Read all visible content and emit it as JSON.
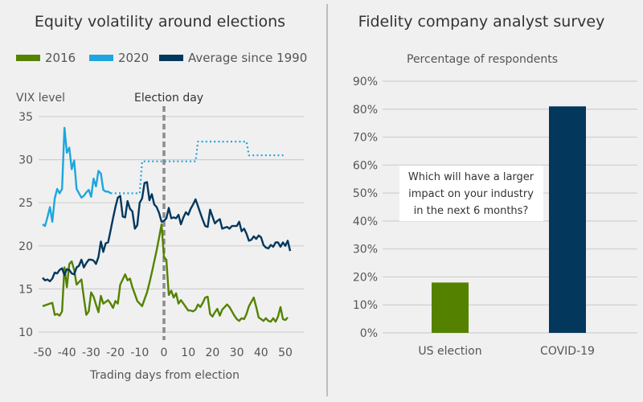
{
  "colors": {
    "s2016": "#548200",
    "s2020": "#1ea6de",
    "avg": "#03375c",
    "election_line": "#8c8c8c",
    "background": "#f0f0f0",
    "divider": "#bdbdbd"
  },
  "chart_data": [
    {
      "type": "line",
      "title": "Equity volatility around elections",
      "xlabel": "Trading days from election",
      "ylabel": "VIX level",
      "xlim": [
        -50,
        52
      ],
      "ylim": [
        10,
        35
      ],
      "xticks": [
        -50,
        -40,
        -30,
        -20,
        -10,
        0,
        10,
        20,
        30,
        40,
        50
      ],
      "yticks": [
        10,
        15,
        20,
        25,
        30,
        35
      ],
      "grid": true,
      "legend_position": "top",
      "annotation": "Election day",
      "annotation_x": 0,
      "series": [
        {
          "name": "2016",
          "key": "s2016",
          "style": "solid",
          "points": [
            [
              -50,
              13.0
            ],
            [
              -49,
              13.1
            ],
            [
              -48,
              13.2
            ],
            [
              -47,
              13.3
            ],
            [
              -46,
              13.4
            ],
            [
              -45,
              12.0
            ],
            [
              -44,
              12.1
            ],
            [
              -43,
              11.9
            ],
            [
              -42,
              12.4
            ],
            [
              -41,
              17.5
            ],
            [
              -40,
              15.2
            ],
            [
              -39,
              17.9
            ],
            [
              -38,
              18.2
            ],
            [
              -37,
              17.2
            ],
            [
              -36,
              15.5
            ],
            [
              -35,
              15.8
            ],
            [
              -34,
              16.1
            ],
            [
              -33,
              14.0
            ],
            [
              -32,
              12.0
            ],
            [
              -31,
              12.4
            ],
            [
              -30,
              14.6
            ],
            [
              -29,
              14.1
            ],
            [
              -28,
              13.2
            ],
            [
              -27,
              12.3
            ],
            [
              -26,
              14.2
            ],
            [
              -25,
              13.3
            ],
            [
              -24,
              13.5
            ],
            [
              -23,
              13.7
            ],
            [
              -22,
              13.3
            ],
            [
              -21,
              12.8
            ],
            [
              -20,
              13.6
            ],
            [
              -19,
              13.3
            ],
            [
              -18,
              15.5
            ],
            [
              -17,
              16.1
            ],
            [
              -16,
              16.7
            ],
            [
              -15,
              16.0
            ],
            [
              -14,
              16.2
            ],
            [
              -13,
              15.2
            ],
            [
              -12,
              14.4
            ],
            [
              -11,
              13.6
            ],
            [
              -10,
              13.3
            ],
            [
              -9,
              13.0
            ],
            [
              -8,
              13.8
            ],
            [
              -7,
              14.6
            ],
            [
              -6,
              15.7
            ],
            [
              -5,
              16.9
            ],
            [
              -4,
              18.2
            ],
            [
              -3,
              19.5
            ],
            [
              -2,
              21.0
            ],
            [
              -1,
              22.5
            ],
            [
              0,
              18.7
            ],
            [
              1,
              18.4
            ],
            [
              2,
              14.3
            ],
            [
              3,
              14.8
            ],
            [
              4,
              14.0
            ],
            [
              5,
              14.5
            ],
            [
              6,
              13.3
            ],
            [
              7,
              13.7
            ],
            [
              8,
              13.3
            ],
            [
              9,
              12.9
            ],
            [
              10,
              12.5
            ],
            [
              11,
              12.5
            ],
            [
              12,
              12.4
            ],
            [
              13,
              12.6
            ],
            [
              14,
              13.2
            ],
            [
              15,
              12.9
            ],
            [
              16,
              13.4
            ],
            [
              17,
              14.0
            ],
            [
              18,
              14.1
            ],
            [
              19,
              12.1
            ],
            [
              20,
              11.8
            ],
            [
              21,
              12.3
            ],
            [
              22,
              12.7
            ],
            [
              23,
              11.9
            ],
            [
              24,
              12.6
            ],
            [
              25,
              12.9
            ],
            [
              26,
              13.2
            ],
            [
              27,
              12.9
            ],
            [
              28,
              12.4
            ],
            [
              29,
              11.9
            ],
            [
              30,
              11.5
            ],
            [
              31,
              11.3
            ],
            [
              32,
              11.6
            ],
            [
              33,
              11.5
            ],
            [
              34,
              12.1
            ],
            [
              35,
              13.0
            ],
            [
              36,
              13.5
            ],
            [
              37,
              14.0
            ],
            [
              38,
              12.9
            ],
            [
              39,
              11.7
            ],
            [
              40,
              11.5
            ],
            [
              41,
              11.3
            ],
            [
              42,
              11.6
            ],
            [
              43,
              11.3
            ],
            [
              44,
              11.2
            ],
            [
              45,
              11.6
            ],
            [
              46,
              11.2
            ],
            [
              47,
              11.8
            ],
            [
              48,
              12.9
            ],
            [
              49,
              11.5
            ],
            [
              50,
              11.4
            ],
            [
              51,
              11.7
            ]
          ]
        },
        {
          "name": "2020",
          "key": "s2020",
          "style": "solid",
          "points": [
            [
              -50,
              22.5
            ],
            [
              -49,
              22.3
            ],
            [
              -48,
              23.3
            ],
            [
              -47,
              24.5
            ],
            [
              -46,
              22.8
            ],
            [
              -45,
              25.5
            ],
            [
              -44,
              26.6
            ],
            [
              -43,
              26.1
            ],
            [
              -42,
              26.6
            ],
            [
              -41,
              33.7
            ],
            [
              -40,
              30.8
            ],
            [
              -39,
              31.4
            ],
            [
              -38,
              28.9
            ],
            [
              -37,
              29.9
            ],
            [
              -36,
              26.6
            ],
            [
              -35,
              26.1
            ],
            [
              -34,
              25.6
            ],
            [
              -33,
              25.8
            ],
            [
              -32,
              26.2
            ],
            [
              -31,
              26.5
            ],
            [
              -30,
              25.7
            ],
            [
              -29,
              27.8
            ],
            [
              -28,
              26.9
            ],
            [
              -27,
              28.7
            ],
            [
              -26,
              28.4
            ],
            [
              -25,
              26.5
            ],
            [
              -24,
              26.3
            ],
            [
              -23,
              26.3
            ],
            [
              -22,
              26.1
            ]
          ]
        },
        {
          "name": "2020 (implied)",
          "key": "s2020",
          "style": "dotted",
          "legend": false,
          "points": [
            [
              -22,
              26.1
            ],
            [
              -10,
              26.1
            ],
            [
              -9,
              29.8
            ],
            [
              13,
              29.8
            ],
            [
              14,
              32.1
            ],
            [
              34,
              32.1
            ],
            [
              35,
              30.5
            ],
            [
              50,
              30.5
            ]
          ]
        },
        {
          "name": "Average since 1990",
          "key": "avg",
          "style": "solid",
          "points": [
            [
              -50,
              16.3
            ],
            [
              -49,
              16.0
            ],
            [
              -48,
              16.1
            ],
            [
              -47,
              15.9
            ],
            [
              -46,
              16.2
            ],
            [
              -45,
              16.9
            ],
            [
              -44,
              16.8
            ],
            [
              -43,
              17.2
            ],
            [
              -42,
              17.4
            ],
            [
              -41,
              16.6
            ],
            [
              -40,
              17.3
            ],
            [
              -39,
              17.2
            ],
            [
              -38,
              16.8
            ],
            [
              -37,
              16.7
            ],
            [
              -36,
              17.5
            ],
            [
              -35,
              17.7
            ],
            [
              -34,
              18.4
            ],
            [
              -33,
              17.5
            ],
            [
              -32,
              18.0
            ],
            [
              -31,
              18.4
            ],
            [
              -30,
              18.4
            ],
            [
              -29,
              18.3
            ],
            [
              -28,
              17.9
            ],
            [
              -27,
              18.7
            ],
            [
              -26,
              20.5
            ],
            [
              -25,
              19.3
            ],
            [
              -24,
              20.3
            ],
            [
              -23,
              20.4
            ],
            [
              -22,
              21.8
            ],
            [
              -21,
              23.2
            ],
            [
              -20,
              24.5
            ],
            [
              -19,
              25.6
            ],
            [
              -18,
              25.8
            ],
            [
              -17,
              23.4
            ],
            [
              -16,
              23.3
            ],
            [
              -15,
              25.2
            ],
            [
              -14,
              24.3
            ],
            [
              -13,
              24.0
            ],
            [
              -12,
              22.0
            ],
            [
              -11,
              22.4
            ],
            [
              -10,
              25.0
            ],
            [
              -9,
              25.5
            ],
            [
              -8,
              27.3
            ],
            [
              -7,
              27.4
            ],
            [
              -6,
              25.3
            ],
            [
              -5,
              26.0
            ],
            [
              -4,
              24.8
            ],
            [
              -3,
              24.5
            ],
            [
              -2,
              23.8
            ],
            [
              -1,
              22.8
            ],
            [
              0,
              22.9
            ],
            [
              1,
              23.2
            ],
            [
              2,
              24.4
            ],
            [
              3,
              23.2
            ],
            [
              4,
              23.3
            ],
            [
              5,
              23.2
            ],
            [
              6,
              23.6
            ],
            [
              7,
              22.5
            ],
            [
              8,
              23.3
            ],
            [
              9,
              23.9
            ],
            [
              10,
              23.6
            ],
            [
              11,
              24.3
            ],
            [
              12,
              24.8
            ],
            [
              13,
              25.4
            ],
            [
              14,
              24.6
            ],
            [
              15,
              23.8
            ],
            [
              16,
              23.0
            ],
            [
              17,
              22.3
            ],
            [
              18,
              22.2
            ],
            [
              19,
              24.2
            ],
            [
              20,
              23.4
            ],
            [
              21,
              22.6
            ],
            [
              22,
              22.9
            ],
            [
              23,
              23.1
            ],
            [
              24,
              22.0
            ],
            [
              25,
              22.1
            ],
            [
              26,
              22.2
            ],
            [
              27,
              22.0
            ],
            [
              28,
              22.3
            ],
            [
              29,
              22.3
            ],
            [
              30,
              22.3
            ],
            [
              31,
              22.8
            ],
            [
              32,
              21.7
            ],
            [
              33,
              22.0
            ],
            [
              34,
              21.4
            ],
            [
              35,
              20.6
            ],
            [
              36,
              20.7
            ],
            [
              37,
              21.1
            ],
            [
              38,
              20.8
            ],
            [
              39,
              21.2
            ],
            [
              40,
              21.0
            ],
            [
              41,
              20.1
            ],
            [
              42,
              19.8
            ],
            [
              43,
              19.7
            ],
            [
              44,
              20.1
            ],
            [
              45,
              19.9
            ],
            [
              46,
              20.4
            ],
            [
              47,
              20.4
            ],
            [
              48,
              19.9
            ],
            [
              49,
              20.4
            ],
            [
              50,
              20.0
            ],
            [
              51,
              20.6
            ],
            [
              52,
              19.4
            ]
          ]
        }
      ]
    },
    {
      "type": "bar",
      "title": "Fidelity company analyst survey",
      "ylabel": "Percentage of respondents",
      "categories": [
        "US election",
        "COVID-19"
      ],
      "values": [
        18,
        81
      ],
      "bar_color_keys": [
        "s2016",
        "avg"
      ],
      "ylim": [
        0,
        90
      ],
      "yticks": [
        0,
        10,
        20,
        30,
        40,
        50,
        60,
        70,
        80,
        90
      ],
      "ytick_suffix": "%",
      "grid": true,
      "annotation": [
        "Which will have a larger",
        "impact on your industry",
        "in the next 6 months?"
      ]
    }
  ]
}
